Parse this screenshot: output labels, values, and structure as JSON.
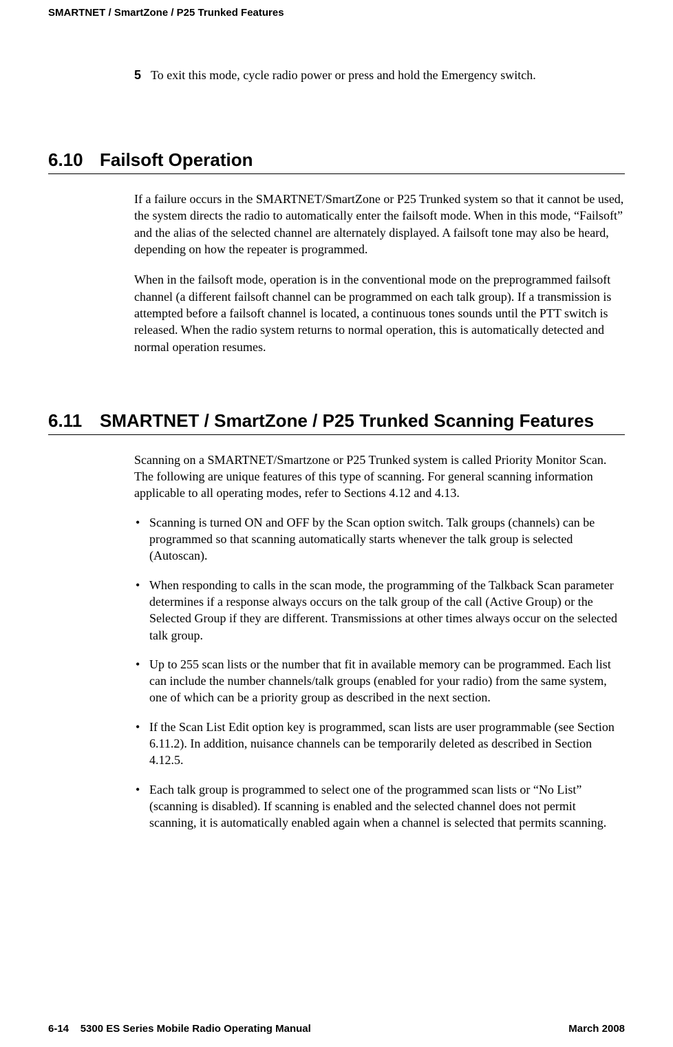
{
  "header": {
    "running_title": "SMARTNET / SmartZone / P25 Trunked Features"
  },
  "step": {
    "number": "5",
    "text": "To exit this mode, cycle radio power or press and hold the Emergency switch."
  },
  "section_610": {
    "number": "6.10",
    "title": "Failsoft Operation",
    "para1": "If a failure occurs in the SMARTNET/SmartZone or P25 Trunked system so that it cannot be used, the system directs the radio to automatically enter the failsoft mode. When in this mode, “Failsoft” and the alias of the selected channel are alternately displayed. A failsoft tone may also be heard, depending on how the repeater is programmed.",
    "para2": "When in the failsoft mode, operation is in the conventional mode on the preprogrammed failsoft channel (a different failsoft channel can be programmed on each talk group). If a transmission is attempted before a failsoft channel is located, a continuous tones sounds until the PTT switch is released. When the radio system returns to normal operation, this is automatically detected and normal operation resumes."
  },
  "section_611": {
    "number": "6.11",
    "title": "SMARTNET / SmartZone / P25 Trunked Scanning Features",
    "intro": "Scanning on a SMARTNET/Smartzone or P25 Trunked system is called Priority Monitor Scan. The following are unique features of this type of scanning. For general scanning information applicable to all operating modes, refer to Sections 4.12 and 4.13.",
    "bullets": [
      "Scanning is turned ON and OFF by the Scan option switch. Talk groups (channels) can be programmed so that scanning automatically starts whenever the talk group is selected (Autoscan).",
      "When responding to calls in the scan mode, the programming of the Talkback Scan parameter determines if a response always occurs on the talk group of the call (Active Group) or the Selected Group if they are different. Transmissions at other times always occur on the selected talk group.",
      "Up to 255 scan lists or the number that fit in available memory can be programmed. Each list can include the number channels/talk groups (enabled for your radio) from the same system, one of which can be a priority group as described in the next section.",
      "If the Scan List Edit option key is programmed, scan lists are user programmable (see Section 6.11.2). In addition, nuisance channels can be temporarily deleted as described in Section 4.12.5.",
      "Each talk group is programmed to select one of the programmed scan lists or “No List” (scanning is disabled). If scanning is enabled and the selected channel does not permit scanning, it is automatically enabled again when a channel is selected that permits scanning."
    ]
  },
  "footer": {
    "left_page": "6-14",
    "left_title": "5300 ES Series Mobile Radio Operating Manual",
    "right": "March 2008"
  },
  "style": {
    "body_font_size_pt": 13,
    "heading_font_size_pt": 20,
    "heading_font_family": "Arial",
    "body_font_family": "Times New Roman",
    "text_color": "#000000",
    "background_color": "#ffffff",
    "rule_color": "#000000"
  }
}
